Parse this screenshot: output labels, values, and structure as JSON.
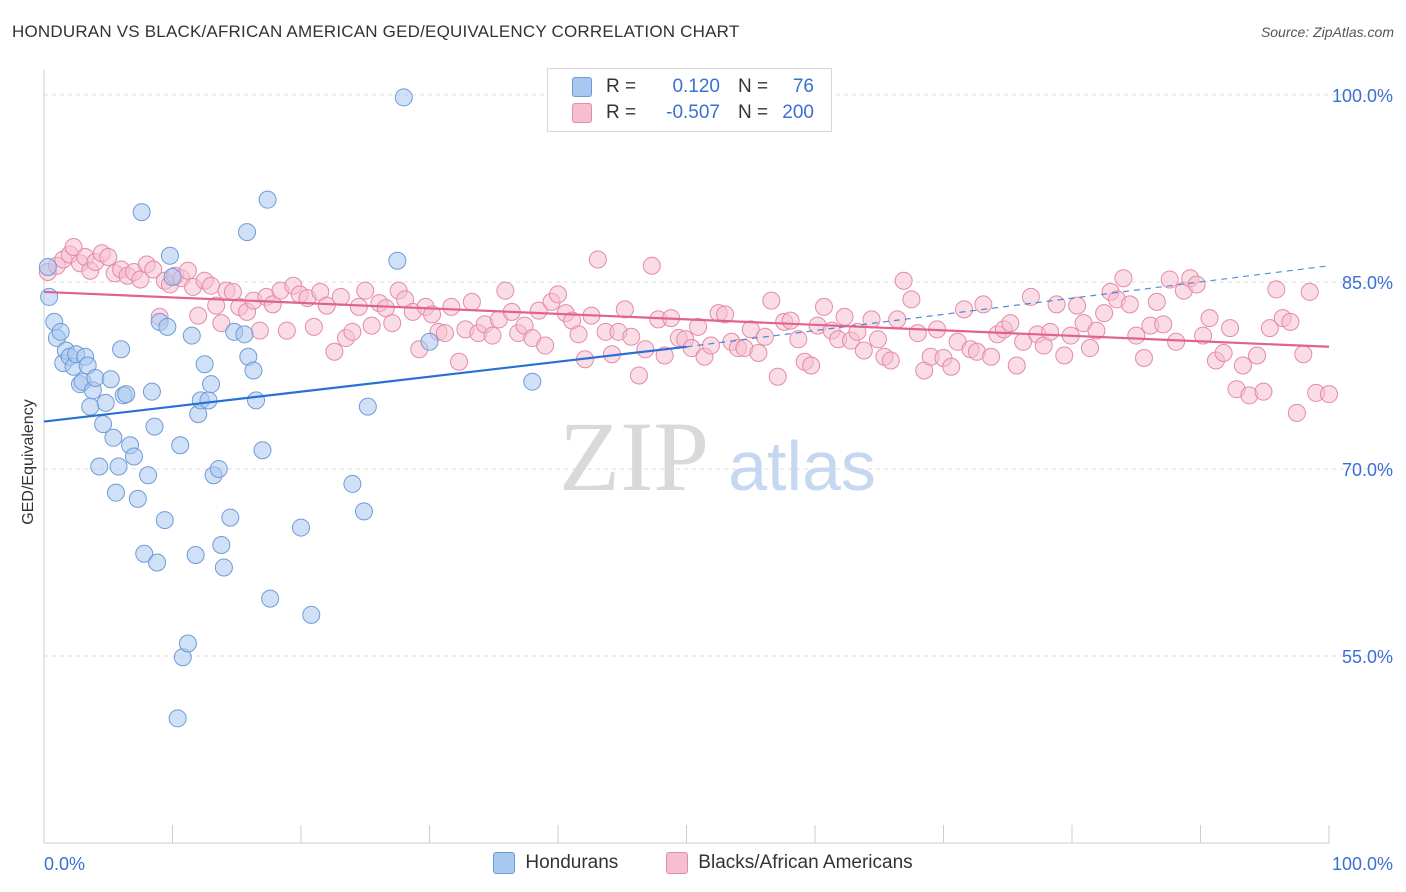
{
  "title": "HONDURAN VS BLACK/AFRICAN AMERICAN GED/EQUIVALENCY CORRELATION CHART",
  "source": "Source: ZipAtlas.com",
  "watermark": {
    "part1": "ZIP",
    "part2": "atlas"
  },
  "legend": {
    "rows": [
      {
        "r_label": "R =",
        "r_value": "0.120",
        "n_label": "N =",
        "n_value": "76",
        "color": "#a9c8f0",
        "border": "#6f9bd8"
      },
      {
        "r_label": "R =",
        "r_value": "-0.507",
        "n_label": "N =",
        "n_value": "200",
        "color": "#f6bfd0",
        "border": "#e58aa8"
      }
    ]
  },
  "bottom_legend": [
    {
      "label": "Hondurans",
      "color": "#a9c8f0",
      "border": "#6f9bd8"
    },
    {
      "label": "Blacks/African Americans",
      "color": "#f6bfd0",
      "border": "#e58aa8"
    }
  ],
  "chart_data": {
    "type": "scatter",
    "title": "HONDURAN VS BLACK/AFRICAN AMERICAN GED/EQUIVALENCY CORRELATION CHART",
    "xlabel": "",
    "ylabel": "GED/Equivalency",
    "xlim": [
      0,
      100
    ],
    "ylim": [
      40,
      102
    ],
    "x_tick_labels": [
      "0.0%",
      "100.0%"
    ],
    "y_ticks": [
      55,
      70,
      85,
      100
    ],
    "y_tick_labels": [
      "55.0%",
      "70.0%",
      "85.0%",
      "100.0%"
    ],
    "grid": true,
    "legend_position": "top-center",
    "series": [
      {
        "name": "Hondurans",
        "color": "#6f9bd8",
        "fill": "#a9c8f0",
        "trend": {
          "x": [
            0,
            50
          ],
          "y": [
            73.8,
            79.8
          ],
          "color": "#2a6fd6",
          "dashed_extension": {
            "x": [
              50,
              100
            ],
            "y": [
              79.8,
              86.3
            ]
          }
        },
        "points": [
          [
            0.3,
            86.2
          ],
          [
            0.4,
            83.8
          ],
          [
            0.8,
            81.8
          ],
          [
            1.0,
            80.5
          ],
          [
            1.3,
            81.0
          ],
          [
            1.5,
            78.5
          ],
          [
            1.7,
            79.5
          ],
          [
            2.0,
            79.0
          ],
          [
            2.3,
            78.2
          ],
          [
            2.5,
            79.2
          ],
          [
            2.8,
            76.8
          ],
          [
            3.0,
            77.0
          ],
          [
            3.2,
            79.0
          ],
          [
            3.4,
            78.3
          ],
          [
            3.6,
            75.0
          ],
          [
            3.8,
            76.3
          ],
          [
            4.0,
            77.3
          ],
          [
            4.3,
            70.2
          ],
          [
            4.6,
            73.6
          ],
          [
            4.8,
            75.3
          ],
          [
            5.2,
            77.2
          ],
          [
            5.4,
            72.5
          ],
          [
            5.6,
            68.1
          ],
          [
            5.8,
            70.2
          ],
          [
            6.0,
            79.6
          ],
          [
            6.2,
            75.9
          ],
          [
            6.4,
            76.0
          ],
          [
            6.7,
            71.9
          ],
          [
            7.0,
            71.0
          ],
          [
            7.3,
            67.6
          ],
          [
            7.6,
            90.6
          ],
          [
            7.8,
            63.2
          ],
          [
            8.1,
            69.5
          ],
          [
            8.4,
            76.2
          ],
          [
            8.6,
            73.4
          ],
          [
            8.8,
            62.5
          ],
          [
            9.0,
            81.8
          ],
          [
            9.4,
            65.9
          ],
          [
            9.6,
            81.4
          ],
          [
            9.8,
            87.1
          ],
          [
            10.0,
            85.4
          ],
          [
            10.4,
            50.0
          ],
          [
            10.6,
            71.9
          ],
          [
            10.8,
            54.9
          ],
          [
            11.2,
            56.0
          ],
          [
            11.5,
            80.7
          ],
          [
            11.8,
            63.1
          ],
          [
            12.0,
            74.4
          ],
          [
            12.2,
            75.5
          ],
          [
            12.5,
            78.4
          ],
          [
            12.8,
            75.5
          ],
          [
            13.0,
            76.8
          ],
          [
            13.2,
            69.5
          ],
          [
            13.6,
            70.0
          ],
          [
            13.8,
            63.9
          ],
          [
            14.0,
            62.1
          ],
          [
            14.5,
            66.1
          ],
          [
            14.8,
            81.0
          ],
          [
            15.6,
            80.8
          ],
          [
            15.8,
            89.0
          ],
          [
            15.9,
            79.0
          ],
          [
            16.3,
            77.9
          ],
          [
            16.5,
            75.5
          ],
          [
            17.0,
            71.5
          ],
          [
            17.4,
            91.6
          ],
          [
            17.6,
            59.6
          ],
          [
            20.0,
            65.3
          ],
          [
            20.8,
            58.3
          ],
          [
            24.0,
            68.8
          ],
          [
            24.9,
            66.6
          ],
          [
            25.2,
            75.0
          ],
          [
            27.5,
            86.7
          ],
          [
            28.0,
            99.8
          ],
          [
            30.0,
            80.2
          ],
          [
            38.0,
            77.0
          ],
          [
            50.5,
            99.8
          ]
        ]
      },
      {
        "name": "Blacks/African Americans",
        "color": "#e58aa8",
        "fill": "#f6bfd0",
        "trend": {
          "x": [
            0,
            100
          ],
          "y": [
            84.2,
            79.8
          ],
          "color": "#e0628f"
        },
        "points": [
          [
            0.3,
            85.8
          ],
          [
            1.0,
            86.3
          ],
          [
            1.5,
            86.8
          ],
          [
            2.0,
            87.2
          ],
          [
            2.3,
            87.8
          ],
          [
            2.8,
            86.5
          ],
          [
            3.2,
            87.0
          ],
          [
            3.6,
            85.9
          ],
          [
            4.0,
            86.6
          ],
          [
            4.5,
            87.3
          ],
          [
            5.0,
            87.0
          ],
          [
            5.5,
            85.7
          ],
          [
            6.0,
            86.0
          ],
          [
            6.5,
            85.5
          ],
          [
            7.0,
            85.8
          ],
          [
            7.5,
            85.2
          ],
          [
            8.0,
            86.4
          ],
          [
            8.5,
            86.0
          ],
          [
            9.0,
            82.2
          ],
          [
            9.4,
            85.1
          ],
          [
            9.8,
            84.8
          ],
          [
            10.2,
            85.5
          ],
          [
            10.7,
            85.3
          ],
          [
            11.2,
            85.9
          ],
          [
            11.6,
            84.6
          ],
          [
            12.0,
            82.3
          ],
          [
            12.5,
            85.1
          ],
          [
            13.0,
            84.7
          ],
          [
            13.4,
            83.1
          ],
          [
            13.8,
            81.7
          ],
          [
            14.2,
            84.3
          ],
          [
            14.7,
            84.2
          ],
          [
            15.2,
            83.0
          ],
          [
            15.8,
            82.6
          ],
          [
            16.3,
            83.5
          ],
          [
            16.8,
            81.1
          ],
          [
            17.3,
            83.8
          ],
          [
            17.8,
            83.2
          ],
          [
            18.4,
            84.3
          ],
          [
            18.9,
            81.1
          ],
          [
            19.4,
            84.7
          ],
          [
            19.9,
            84.0
          ],
          [
            20.5,
            83.7
          ],
          [
            21.0,
            81.4
          ],
          [
            21.5,
            84.2
          ],
          [
            22.0,
            83.1
          ],
          [
            22.6,
            79.4
          ],
          [
            23.1,
            83.8
          ],
          [
            23.5,
            80.5
          ],
          [
            24.0,
            81.0
          ],
          [
            24.5,
            83.0
          ],
          [
            25.0,
            84.3
          ],
          [
            25.5,
            81.5
          ],
          [
            26.1,
            83.3
          ],
          [
            26.6,
            82.9
          ],
          [
            27.1,
            81.7
          ],
          [
            27.6,
            84.3
          ],
          [
            28.1,
            83.6
          ],
          [
            28.7,
            82.6
          ],
          [
            29.2,
            79.6
          ],
          [
            29.7,
            83.0
          ],
          [
            30.2,
            82.4
          ],
          [
            30.7,
            81.0
          ],
          [
            31.2,
            80.9
          ],
          [
            31.7,
            83.0
          ],
          [
            32.3,
            78.6
          ],
          [
            32.8,
            81.2
          ],
          [
            33.3,
            83.4
          ],
          [
            33.8,
            80.9
          ],
          [
            34.3,
            81.6
          ],
          [
            34.9,
            80.7
          ],
          [
            35.4,
            82.0
          ],
          [
            35.9,
            84.3
          ],
          [
            36.4,
            82.6
          ],
          [
            36.9,
            80.9
          ],
          [
            37.4,
            81.5
          ],
          [
            38.0,
            80.5
          ],
          [
            38.5,
            82.7
          ],
          [
            39.0,
            79.9
          ],
          [
            39.5,
            83.4
          ],
          [
            40.0,
            84.0
          ],
          [
            40.6,
            82.5
          ],
          [
            41.1,
            81.9
          ],
          [
            41.6,
            80.8
          ],
          [
            42.1,
            78.8
          ],
          [
            42.6,
            82.3
          ],
          [
            43.1,
            86.8
          ],
          [
            43.7,
            81.0
          ],
          [
            44.2,
            79.2
          ],
          [
            44.7,
            81.0
          ],
          [
            45.2,
            82.8
          ],
          [
            45.7,
            80.6
          ],
          [
            46.3,
            77.5
          ],
          [
            46.8,
            79.6
          ],
          [
            47.3,
            86.3
          ],
          [
            47.8,
            82.0
          ],
          [
            48.3,
            79.1
          ],
          [
            48.8,
            82.1
          ],
          [
            49.4,
            80.5
          ],
          [
            49.9,
            80.4
          ],
          [
            50.4,
            79.7
          ],
          [
            50.9,
            81.4
          ],
          [
            51.4,
            79.0
          ],
          [
            51.9,
            79.9
          ],
          [
            52.5,
            82.5
          ],
          [
            53.0,
            82.4
          ],
          [
            53.5,
            80.2
          ],
          [
            54.0,
            79.7
          ],
          [
            54.5,
            79.7
          ],
          [
            55.0,
            81.2
          ],
          [
            55.6,
            79.3
          ],
          [
            56.1,
            80.6
          ],
          [
            56.6,
            83.5
          ],
          [
            57.1,
            77.4
          ],
          [
            57.6,
            81.8
          ],
          [
            58.1,
            81.9
          ],
          [
            58.7,
            80.4
          ],
          [
            59.2,
            78.6
          ],
          [
            59.7,
            78.3
          ],
          [
            60.2,
            81.5
          ],
          [
            60.7,
            83.0
          ],
          [
            61.3,
            81.1
          ],
          [
            61.8,
            80.4
          ],
          [
            62.3,
            82.2
          ],
          [
            62.8,
            80.3
          ],
          [
            63.3,
            81.0
          ],
          [
            63.8,
            79.5
          ],
          [
            64.4,
            82.0
          ],
          [
            64.9,
            80.4
          ],
          [
            65.4,
            79.0
          ],
          [
            65.9,
            78.7
          ],
          [
            66.4,
            82.0
          ],
          [
            66.9,
            85.1
          ],
          [
            67.5,
            83.6
          ],
          [
            68.0,
            80.9
          ],
          [
            68.5,
            77.9
          ],
          [
            69.0,
            79.0
          ],
          [
            69.5,
            81.2
          ],
          [
            70.0,
            78.9
          ],
          [
            70.6,
            78.2
          ],
          [
            71.1,
            80.2
          ],
          [
            71.6,
            82.8
          ],
          [
            72.1,
            79.6
          ],
          [
            72.6,
            79.4
          ],
          [
            73.1,
            83.2
          ],
          [
            73.7,
            79.0
          ],
          [
            74.2,
            80.8
          ],
          [
            74.7,
            81.2
          ],
          [
            75.2,
            81.7
          ],
          [
            75.7,
            78.3
          ],
          [
            76.2,
            80.2
          ],
          [
            76.8,
            83.8
          ],
          [
            77.3,
            80.8
          ],
          [
            77.8,
            79.9
          ],
          [
            78.3,
            81.0
          ],
          [
            78.8,
            83.2
          ],
          [
            79.4,
            79.1
          ],
          [
            79.9,
            80.7
          ],
          [
            80.4,
            83.1
          ],
          [
            80.9,
            81.7
          ],
          [
            81.4,
            79.7
          ],
          [
            81.9,
            81.1
          ],
          [
            82.5,
            82.5
          ],
          [
            83.0,
            84.2
          ],
          [
            83.5,
            83.6
          ],
          [
            84.0,
            85.3
          ],
          [
            84.5,
            83.2
          ],
          [
            85.0,
            80.7
          ],
          [
            85.6,
            78.9
          ],
          [
            86.1,
            81.5
          ],
          [
            86.6,
            83.4
          ],
          [
            87.1,
            81.6
          ],
          [
            87.6,
            85.2
          ],
          [
            88.1,
            80.2
          ],
          [
            88.7,
            84.3
          ],
          [
            89.2,
            85.3
          ],
          [
            89.7,
            84.8
          ],
          [
            90.2,
            80.7
          ],
          [
            90.7,
            82.1
          ],
          [
            91.2,
            78.7
          ],
          [
            91.8,
            79.3
          ],
          [
            92.3,
            81.3
          ],
          [
            92.8,
            76.4
          ],
          [
            93.3,
            78.3
          ],
          [
            93.8,
            75.9
          ],
          [
            94.4,
            79.1
          ],
          [
            94.9,
            76.2
          ],
          [
            95.4,
            81.3
          ],
          [
            95.9,
            84.4
          ],
          [
            96.4,
            82.1
          ],
          [
            97.0,
            81.8
          ],
          [
            97.5,
            74.5
          ],
          [
            98.0,
            79.2
          ],
          [
            98.5,
            84.2
          ],
          [
            99.0,
            76.1
          ],
          [
            100.0,
            76.0
          ]
        ]
      }
    ]
  }
}
